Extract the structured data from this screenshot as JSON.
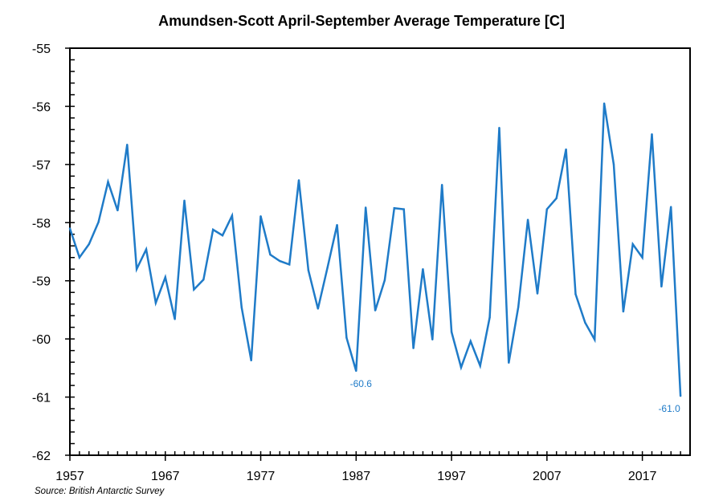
{
  "chart_data": {
    "type": "line",
    "title": "Amundsen-Scott April-September Average Temperature [C]",
    "xlabel": "",
    "ylabel": "",
    "source": "Source: British Antarctic Survey",
    "xlim": [
      1957,
      2022
    ],
    "ylim": [
      -62,
      -55
    ],
    "grid": false,
    "legend": "none",
    "line_color": "#1f7bc8",
    "x_ticks": [
      1957,
      1967,
      1977,
      1987,
      1997,
      2007,
      2017
    ],
    "x_tick_labels": [
      "1957",
      "1967",
      "1977",
      "1987",
      "1997",
      "2007",
      "2017"
    ],
    "y_ticks": [
      -55,
      -56,
      -57,
      -58,
      -59,
      -60,
      -61,
      -62
    ],
    "y_tick_labels": [
      "-55",
      "-56",
      "-57",
      "-58",
      "-59",
      "-60",
      "-61",
      "-62"
    ],
    "series": [
      {
        "name": "Average Temperature",
        "x": [
          1957,
          1958,
          1959,
          1960,
          1961,
          1962,
          1963,
          1964,
          1965,
          1966,
          1967,
          1968,
          1969,
          1970,
          1971,
          1972,
          1973,
          1974,
          1975,
          1976,
          1977,
          1978,
          1979,
          1980,
          1981,
          1982,
          1983,
          1984,
          1985,
          1986,
          1987,
          1988,
          1989,
          1990,
          1991,
          1992,
          1993,
          1994,
          1995,
          1996,
          1997,
          1998,
          1999,
          2000,
          2001,
          2002,
          2003,
          2004,
          2005,
          2006,
          2007,
          2008,
          2009,
          2010,
          2011,
          2012,
          2013,
          2014,
          2015,
          2016,
          2017,
          2018,
          2019,
          2020,
          2021
        ],
        "values": [
          -58.1,
          -58.6,
          -58.37,
          -57.99,
          -57.3,
          -57.79,
          -56.66,
          -58.8,
          -58.46,
          -59.38,
          -58.94,
          -59.66,
          -57.62,
          -59.15,
          -58.98,
          -58.12,
          -58.22,
          -57.88,
          -59.46,
          -60.37,
          -57.89,
          -58.55,
          -58.66,
          -58.72,
          -57.27,
          -58.82,
          -59.48,
          -58.77,
          -58.04,
          -59.98,
          -60.55,
          -57.74,
          -59.51,
          -58.99,
          -57.75,
          -57.77,
          -60.16,
          -58.8,
          -60.01,
          -57.35,
          -59.88,
          -60.49,
          -60.04,
          -60.46,
          -59.63,
          -56.37,
          -60.41,
          -59.45,
          -57.95,
          -59.22,
          -57.77,
          -57.58,
          -56.74,
          -59.23,
          -59.72,
          -60.01,
          -55.95,
          -57.0,
          -59.53,
          -58.37,
          -58.6,
          -56.48,
          -59.1,
          -57.73,
          -60.98
        ]
      }
    ],
    "annotations": [
      {
        "x": 1987,
        "y": -60.55,
        "text": "-60.6"
      },
      {
        "x": 2021,
        "y": -60.98,
        "text": "-61.0"
      }
    ]
  }
}
